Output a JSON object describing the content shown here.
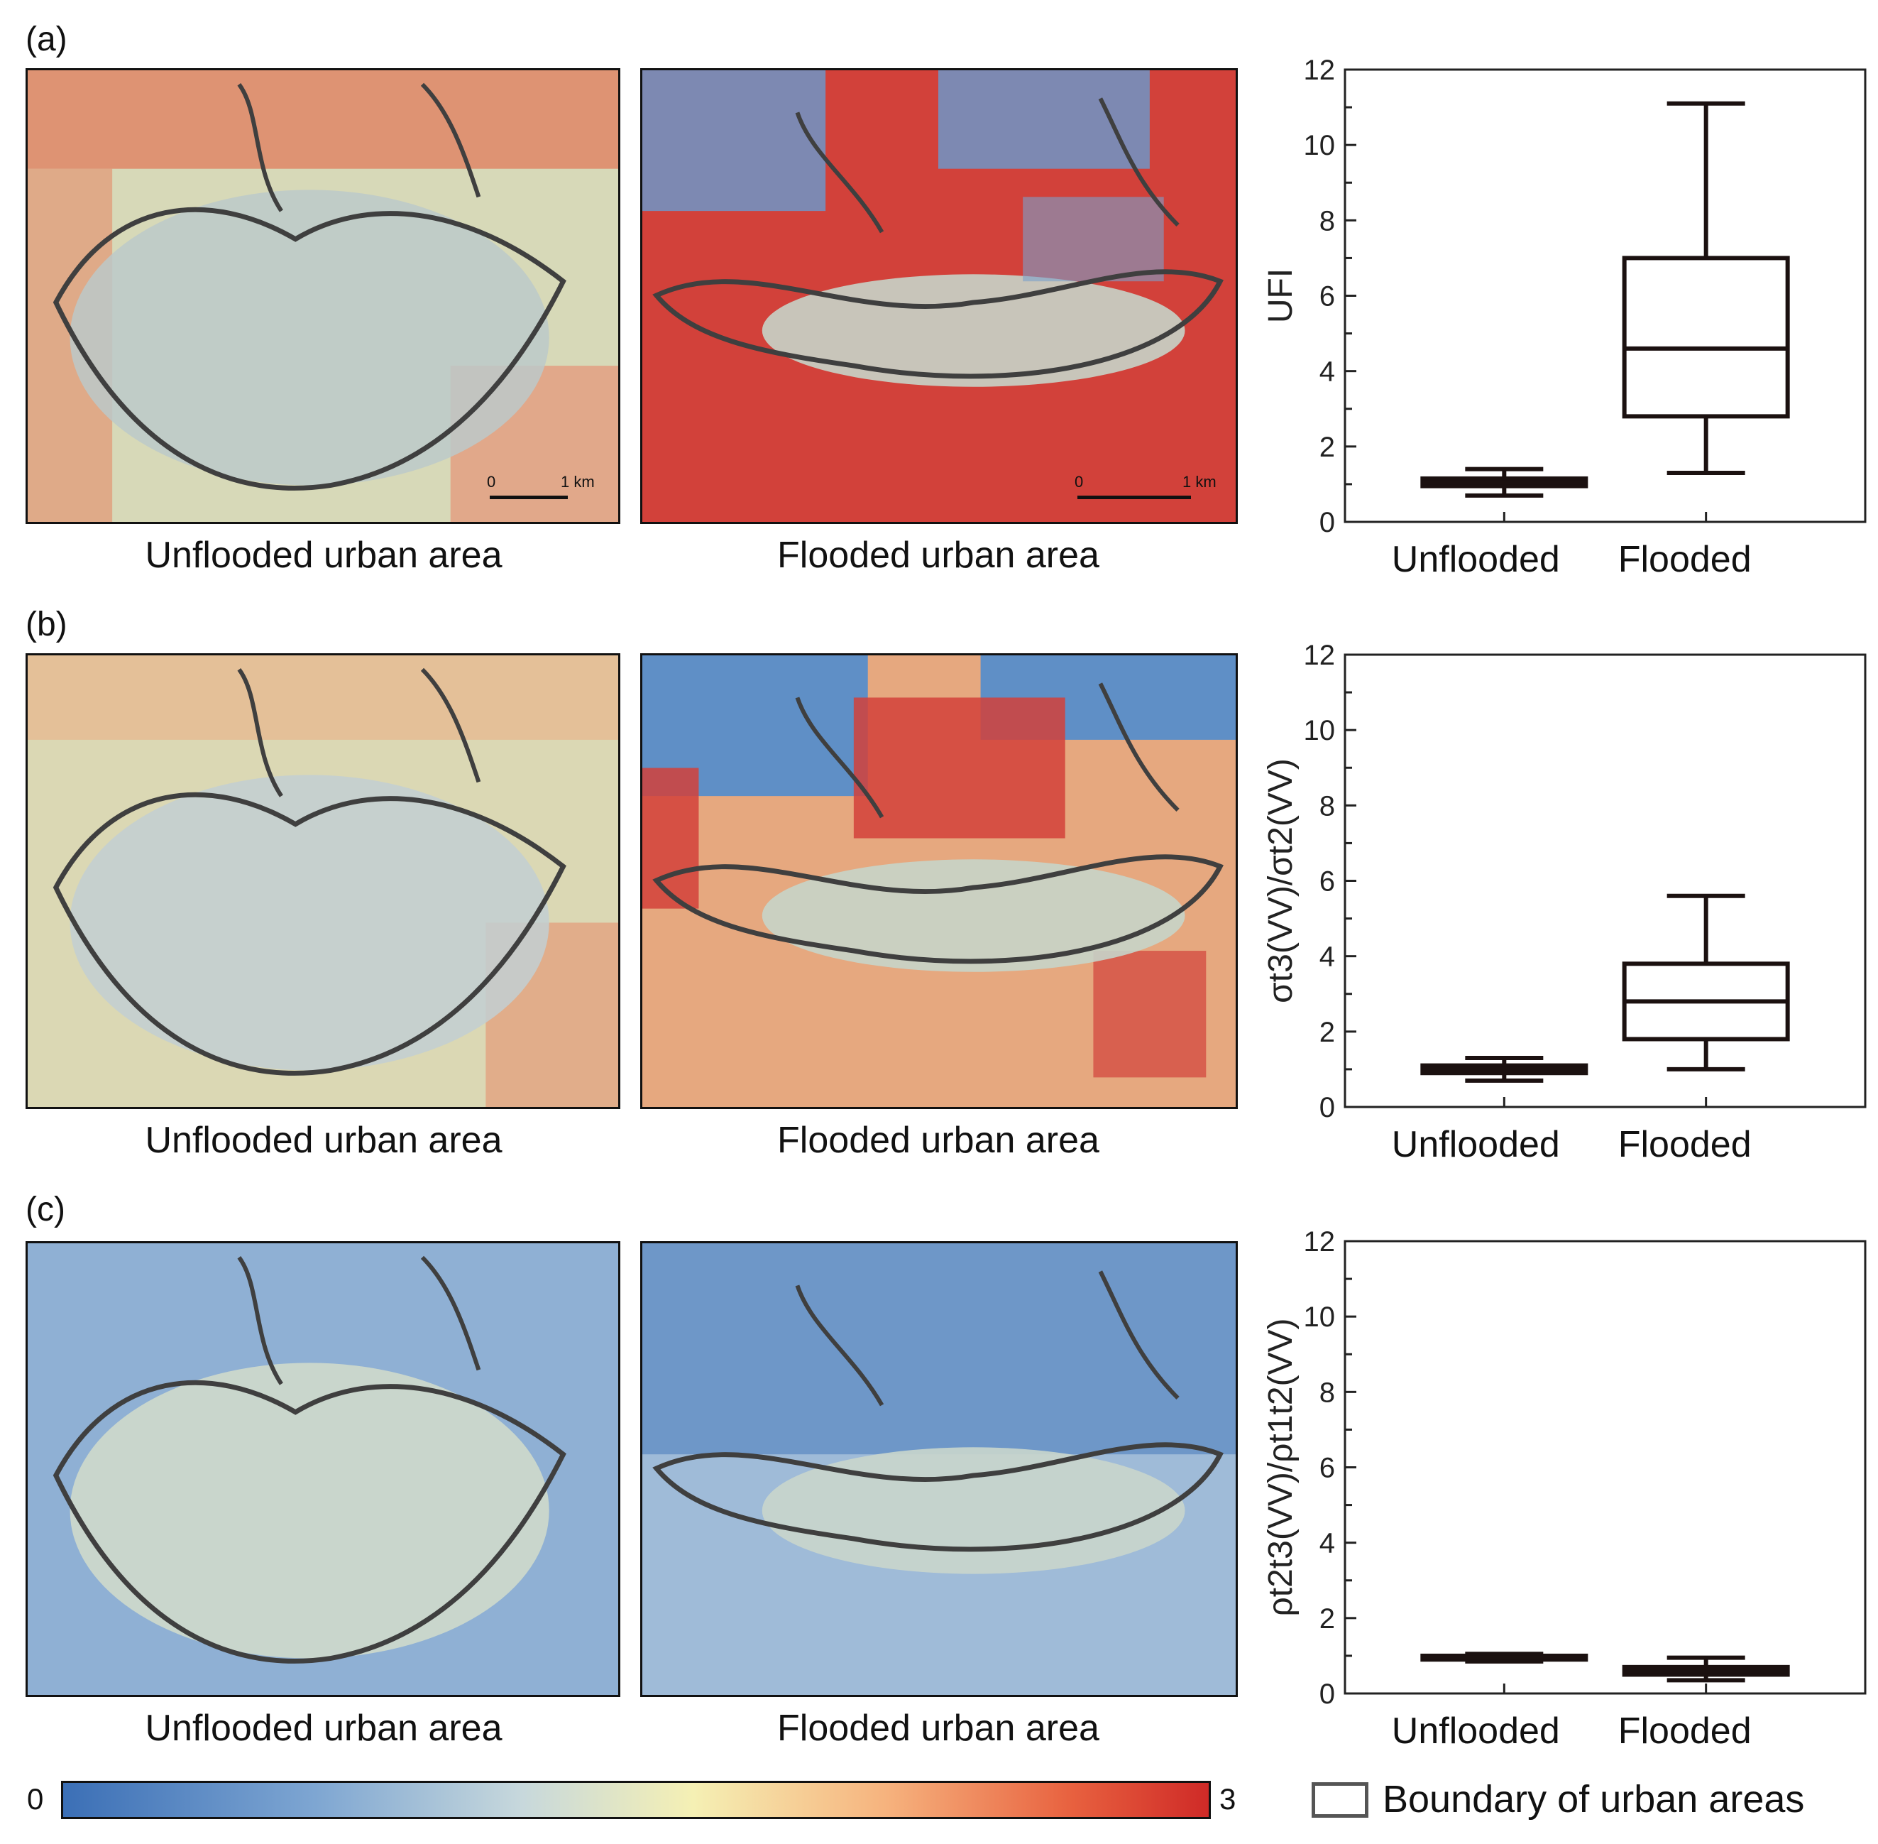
{
  "panels": [
    {
      "label": "(a)",
      "caption_left": "Unflooded urban area",
      "caption_right": "Flooded urban area",
      "scale_labels": [
        "0",
        "1 km"
      ]
    },
    {
      "label": "(b)",
      "caption_left": "Unflooded urban area",
      "caption_right": "Flooded urban area"
    },
    {
      "label": "(c)",
      "caption_left": "Unflooded urban area",
      "caption_right": "Flooded urban area"
    }
  ],
  "colorbar": {
    "min_label": "0",
    "max_label": "3",
    "colors": [
      "#3b6fb6",
      "#c7d8dc",
      "#f5f0b4",
      "#e8613f",
      "#cf2a27"
    ]
  },
  "legend": {
    "label": "Boundary of urban areas",
    "color": "#555555"
  },
  "chart_data": [
    {
      "type": "box",
      "ylabel": "UFI",
      "ylim": [
        0,
        12
      ],
      "yticks": [
        "0",
        "2",
        "4",
        "6",
        "8",
        "10",
        "12"
      ],
      "categories": [
        "Unflooded",
        "Flooded"
      ],
      "boxes": [
        {
          "category": "Unflooded",
          "whisker_low": 0.7,
          "q1": 0.95,
          "median": 1.05,
          "q3": 1.15,
          "whisker_high": 1.4
        },
        {
          "category": "Flooded",
          "whisker_low": 1.3,
          "q1": 2.8,
          "median": 4.6,
          "q3": 7.0,
          "whisker_high": 11.1
        }
      ]
    },
    {
      "type": "box",
      "ylabel": "σt3(VV)/σt2(VV)",
      "ylim": [
        0,
        12
      ],
      "yticks": [
        "0",
        "2",
        "4",
        "6",
        "8",
        "10",
        "12"
      ],
      "categories": [
        "Unflooded",
        "Flooded"
      ],
      "boxes": [
        {
          "category": "Unflooded",
          "whisker_low": 0.7,
          "q1": 0.9,
          "median": 1.0,
          "q3": 1.1,
          "whisker_high": 1.3
        },
        {
          "category": "Flooded",
          "whisker_low": 1.0,
          "q1": 1.8,
          "median": 2.8,
          "q3": 3.8,
          "whisker_high": 5.6
        }
      ]
    },
    {
      "type": "box",
      "ylabel": "ρt2t3(VV)/ρt1t2(VV)",
      "ylim": [
        0,
        12
      ],
      "yticks": [
        "0",
        "2",
        "4",
        "6",
        "8",
        "10",
        "12"
      ],
      "categories": [
        "Unflooded",
        "Flooded"
      ],
      "boxes": [
        {
          "category": "Unflooded",
          "whisker_low": 0.85,
          "q1": 0.9,
          "median": 0.95,
          "q3": 1.0,
          "whisker_high": 1.05
        },
        {
          "category": "Flooded",
          "whisker_low": 0.35,
          "q1": 0.5,
          "median": 0.6,
          "q3": 0.7,
          "whisker_high": 0.95
        }
      ]
    }
  ]
}
